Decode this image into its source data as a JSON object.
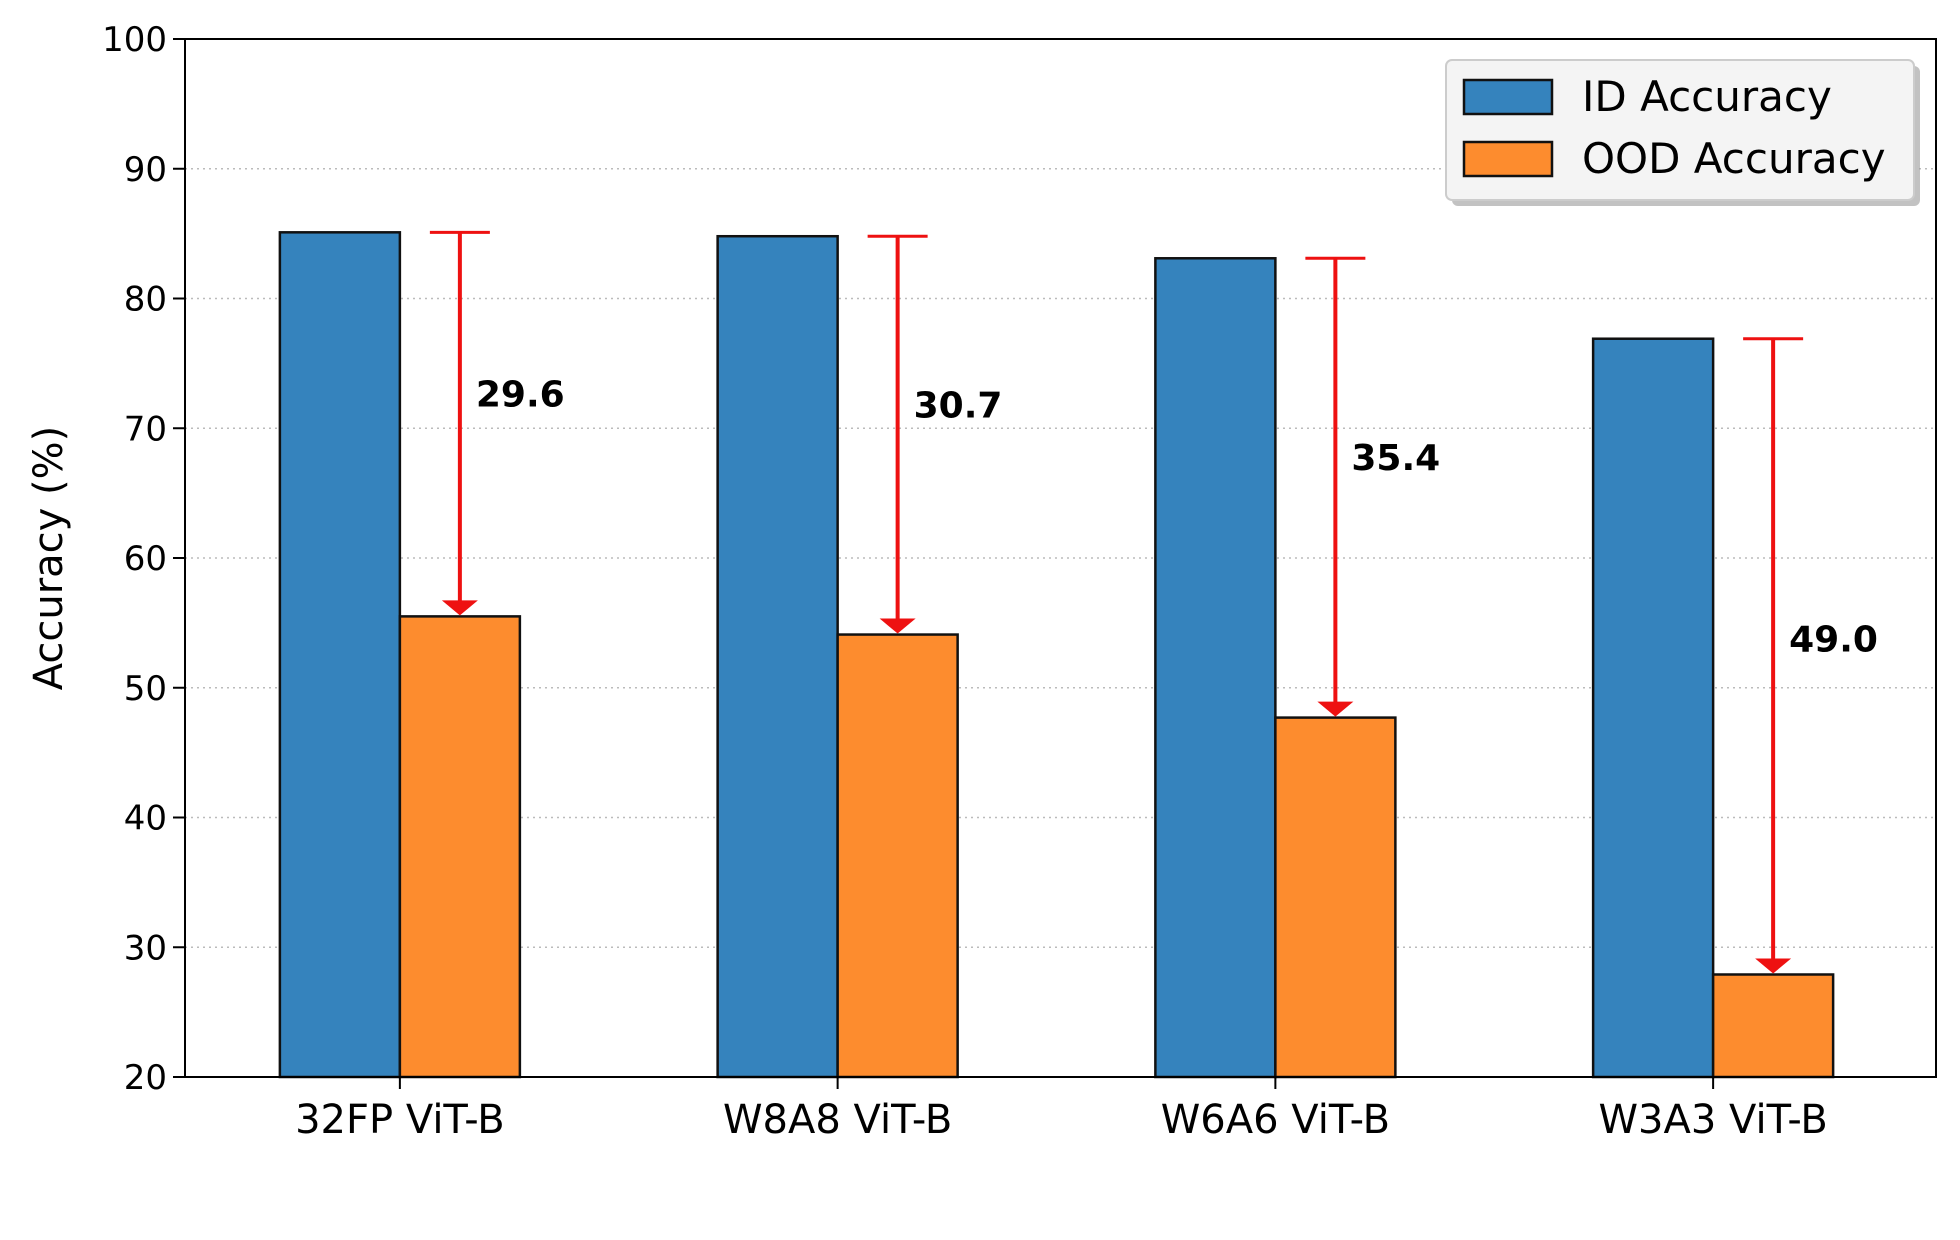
{
  "chart_data": {
    "type": "bar",
    "categories": [
      "32FP ViT-B",
      "W8A8 ViT-B",
      "W6A6 ViT-B",
      "W3A3 ViT-B"
    ],
    "series": [
      {
        "name": "ID Accuracy",
        "color": "#3583bd",
        "values": [
          85.1,
          84.8,
          83.1,
          76.9
        ]
      },
      {
        "name": "OOD Accuracy",
        "color": "#fd8c2e",
        "values": [
          55.5,
          54.1,
          47.7,
          27.9
        ]
      }
    ],
    "drops": [
      "29.6",
      "30.7",
      "35.4",
      "49.0"
    ],
    "drop_color": "#ee1111",
    "ylabel": "Accuracy (%)",
    "xlabel": "",
    "ylim": [
      20,
      100
    ],
    "yticks": [
      20,
      30,
      40,
      50,
      60,
      70,
      80,
      90,
      100
    ],
    "grid": "horizontal dotted",
    "legend_position": "top-right"
  }
}
